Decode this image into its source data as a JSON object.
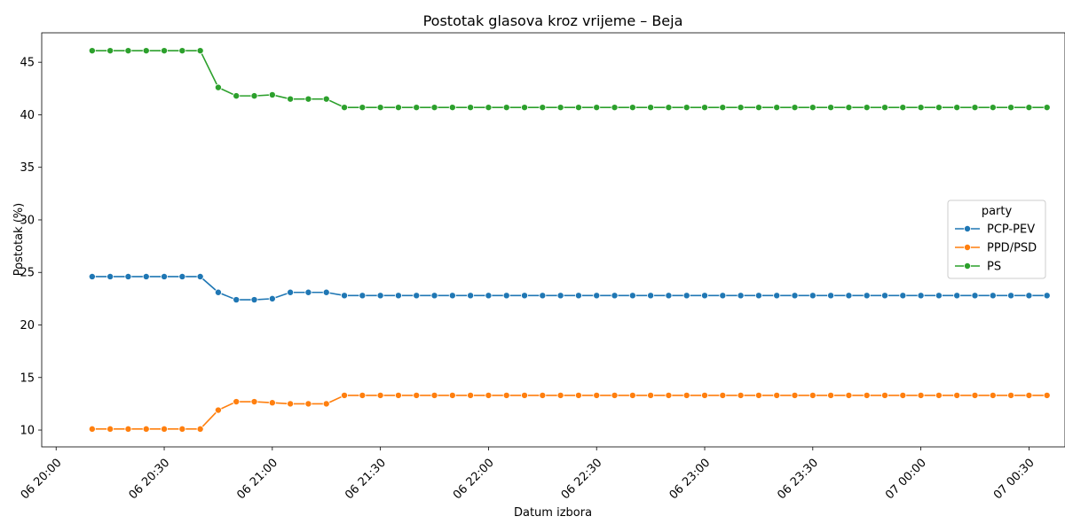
{
  "chart_data": {
    "type": "line",
    "title": "Postotak glasova kroz vrijeme – Beja",
    "xlabel": "Datum izbora",
    "ylabel": "Postotak (%)",
    "legend_title": "party",
    "legend_position": "center-right",
    "grid": false,
    "x_start": "06 20:10",
    "x_step_minutes": 5,
    "xlim": [
      "06 19:56",
      "07 00:40"
    ],
    "ylim": [
      8.4,
      47.8
    ],
    "x_ticks": [
      "06 20:00",
      "06 20:30",
      "06 21:00",
      "06 21:30",
      "06 22:00",
      "06 22:30",
      "06 23:00",
      "06 23:30",
      "07 00:00",
      "07 00:30"
    ],
    "y_ticks": [
      10,
      15,
      20,
      25,
      30,
      35,
      40,
      45
    ],
    "series": [
      {
        "name": "PCP-PEV",
        "color": "#1f77b4",
        "values": [
          24.6,
          24.6,
          24.6,
          24.6,
          24.6,
          24.6,
          24.6,
          23.1,
          22.4,
          22.4,
          22.5,
          23.1,
          23.1,
          23.1,
          22.8,
          22.8,
          22.8,
          22.8,
          22.8,
          22.8,
          22.8,
          22.8,
          22.8,
          22.8,
          22.8,
          22.8,
          22.8,
          22.8,
          22.8,
          22.8,
          22.8,
          22.8,
          22.8,
          22.8,
          22.8,
          22.8,
          22.8,
          22.8,
          22.8,
          22.8,
          22.8,
          22.8,
          22.8,
          22.8,
          22.8,
          22.8,
          22.8,
          22.8,
          22.8,
          22.8,
          22.8,
          22.8,
          22.8,
          22.8
        ]
      },
      {
        "name": "PPD/PSD",
        "color": "#ff7f0e",
        "values": [
          10.1,
          10.1,
          10.1,
          10.1,
          10.1,
          10.1,
          10.1,
          11.9,
          12.7,
          12.7,
          12.6,
          12.5,
          12.5,
          12.5,
          13.3,
          13.3,
          13.3,
          13.3,
          13.3,
          13.3,
          13.3,
          13.3,
          13.3,
          13.3,
          13.3,
          13.3,
          13.3,
          13.3,
          13.3,
          13.3,
          13.3,
          13.3,
          13.3,
          13.3,
          13.3,
          13.3,
          13.3,
          13.3,
          13.3,
          13.3,
          13.3,
          13.3,
          13.3,
          13.3,
          13.3,
          13.3,
          13.3,
          13.3,
          13.3,
          13.3,
          13.3,
          13.3,
          13.3,
          13.3
        ]
      },
      {
        "name": "PS",
        "color": "#2ca02c",
        "values": [
          46.1,
          46.1,
          46.1,
          46.1,
          46.1,
          46.1,
          46.1,
          42.6,
          41.8,
          41.8,
          41.9,
          41.5,
          41.5,
          41.5,
          40.7,
          40.7,
          40.7,
          40.7,
          40.7,
          40.7,
          40.7,
          40.7,
          40.7,
          40.7,
          40.7,
          40.7,
          40.7,
          40.7,
          40.7,
          40.7,
          40.7,
          40.7,
          40.7,
          40.7,
          40.7,
          40.7,
          40.7,
          40.7,
          40.7,
          40.7,
          40.7,
          40.7,
          40.7,
          40.7,
          40.7,
          40.7,
          40.7,
          40.7,
          40.7,
          40.7,
          40.7,
          40.7,
          40.7,
          40.7
        ]
      }
    ]
  }
}
